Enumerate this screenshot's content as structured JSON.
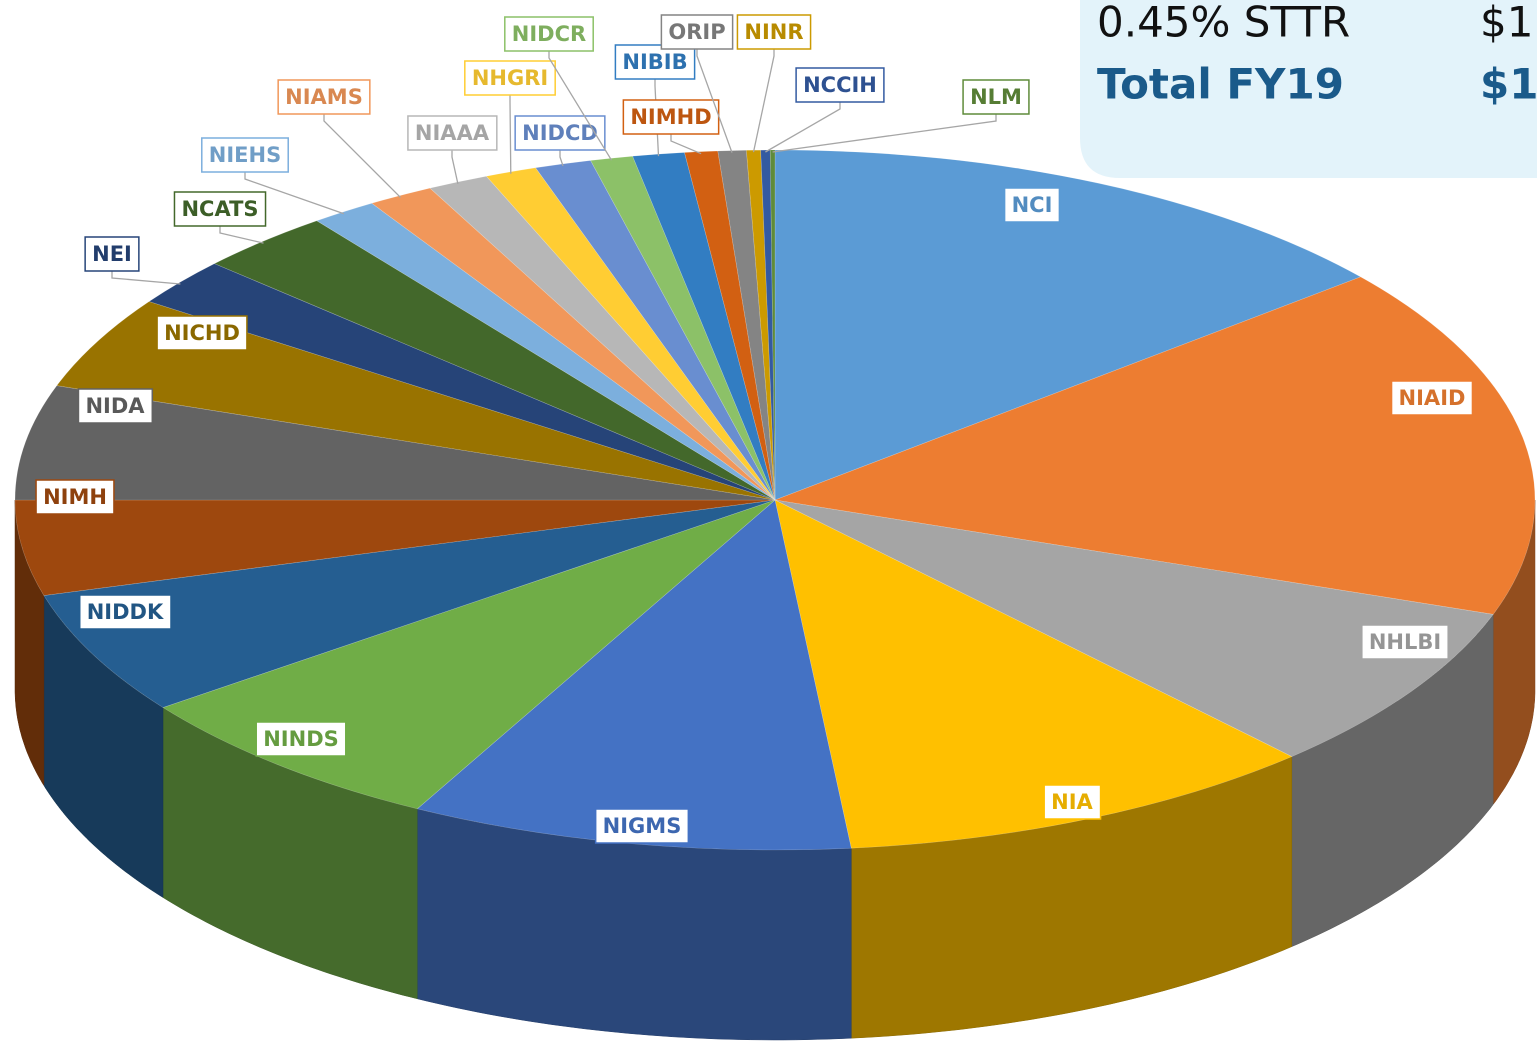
{
  "chart_data": {
    "type": "pie",
    "categories": [
      "NCI",
      "NIAID",
      "NHLBI",
      "NIA",
      "NIGMS",
      "NINDS",
      "NIDDK",
      "NIMH",
      "NIDA",
      "NICHD",
      "NEI",
      "NCATS",
      "NIEHS",
      "NIAMS",
      "NIAAA",
      "NHGRI",
      "NIDCD",
      "NIDCR",
      "NIBIB",
      "NIMHD",
      "ORIP",
      "NINR",
      "NCCIH",
      "NLM"
    ],
    "values": [
      14,
      16.3,
      7.8,
      10.3,
      9.4,
      7.1,
      5.7,
      4.4,
      5.3,
      4.3,
      2.2,
      2.9,
      1.4,
      1.4,
      1.3,
      1.1,
      1.2,
      0.9,
      1.1,
      0.7,
      0.6,
      0.3,
      0.2,
      0.1
    ],
    "colors": [
      "#5b9bd5",
      "#ed7d31",
      "#a5a5a5",
      "#ffc000",
      "#4472c4",
      "#70ad47",
      "#255e91",
      "#9e480e",
      "#636363",
      "#997300",
      "#264478",
      "#43682b",
      "#7cafdd",
      "#f1975a",
      "#b7b7b7",
      "#ffcd33",
      "#698ed0",
      "#8cc168",
      "#327dc2",
      "#d26012",
      "#848484",
      "#cc9a00",
      "#335aa1",
      "#5f8b3a"
    ],
    "annotations": [
      {
        "label": "0.45% STTR",
        "amount": "$1"
      },
      {
        "label": "Total FY19",
        "amount": "$1"
      }
    ]
  }
}
